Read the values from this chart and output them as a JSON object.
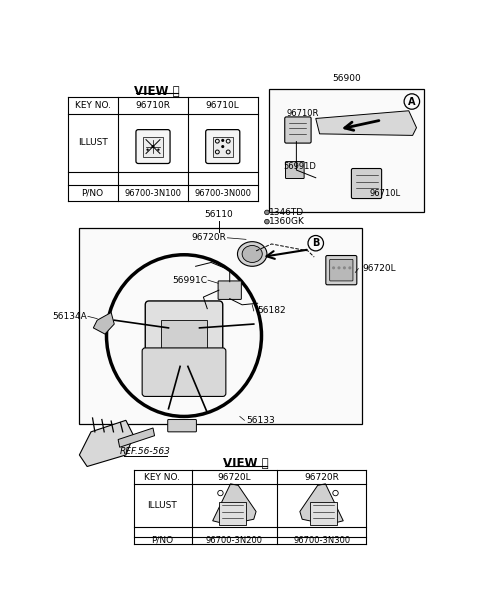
{
  "bg_color": "#ffffff",
  "line_color": "#000000",
  "text_color": "#000000",
  "gray_fill": "#e8e8e8",
  "dark_gray": "#c0c0c0",
  "view_a_title": "VIEW Ⓐ",
  "view_b_title": "VIEW Ⓑ",
  "view_a_table": {
    "col_headers": [
      "KEY NO.",
      "96710R",
      "96710L"
    ],
    "row_illust": "ILLUST",
    "row_pno": "P/NO",
    "pno_values": [
      "96700-3N100",
      "96700-3N000"
    ]
  },
  "view_b_table": {
    "col_headers": [
      "KEY NO.",
      "96720L",
      "96720R"
    ],
    "row_illust": "ILLUST",
    "row_pno": "P/NO",
    "pno_values": [
      "96700-3N200",
      "96700-3N300"
    ]
  },
  "font_size": 6.5,
  "font_size_title": 8.5,
  "font_size_small": 5.5
}
